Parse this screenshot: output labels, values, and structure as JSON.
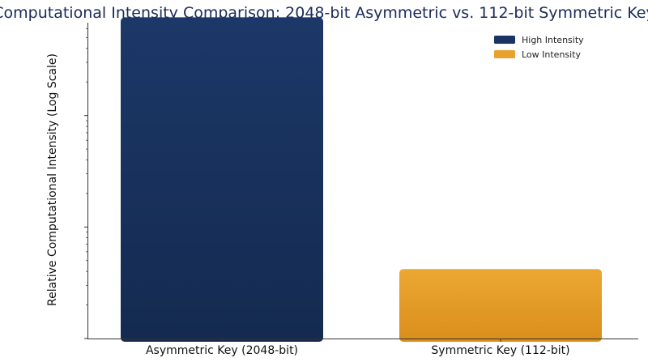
{
  "chart_data": {
    "type": "bar",
    "title": "Computational Intensity Comparison: 2048-bit Asymmetric vs. 112-bit Symmetric Key",
    "xlabel": "",
    "ylabel": "Relative Computational Intensity (Log Scale)",
    "yscale": "log",
    "ylim": [
      1,
      1000
    ],
    "categories": [
      "Asymmetric Key (2048-bit)",
      "Symmetric Key (112-bit)"
    ],
    "values": [
      760,
      4.2
    ],
    "colors": [
      "#1a3563",
      "#e8a12e"
    ],
    "legend": {
      "position": "top-right",
      "entries": [
        {
          "label": "High Intensity",
          "color": "#1a3563"
        },
        {
          "label": "Low Intensity",
          "color": "#e8a12e"
        }
      ]
    },
    "grid": false
  }
}
